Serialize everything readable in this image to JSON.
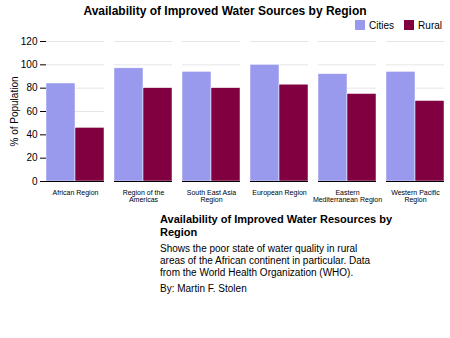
{
  "chart_data": {
    "type": "bar",
    "title": "Availability of Improved Water Sources by Region",
    "ylabel": "% of Population",
    "categories": [
      "African Region",
      "Region of the\nAmericas",
      "South East Asia\nRegion",
      "European Region",
      "Eastern\nMediterranean Region",
      "Western Pacific\nRegion"
    ],
    "series": [
      {
        "name": "Cities",
        "color": "#9999ee",
        "values": [
          84,
          97,
          94,
          100,
          92,
          94
        ]
      },
      {
        "name": "Rural",
        "color": "#800040",
        "values": [
          46,
          80,
          80,
          83,
          75,
          69
        ]
      }
    ],
    "ylim": [
      0,
      120
    ],
    "yticks": [
      0,
      20,
      40,
      60,
      80,
      100,
      120
    ],
    "grid": true,
    "legend": "upper right",
    "annotations": [
      "Availability of Improved Water Resources by\nRegion",
      "Shows the poor state of water quality in rural\nareas of the African continent in particular. Data\nfrom the World Health Organization (WHO).",
      "By: Martin F. Stolen"
    ]
  }
}
